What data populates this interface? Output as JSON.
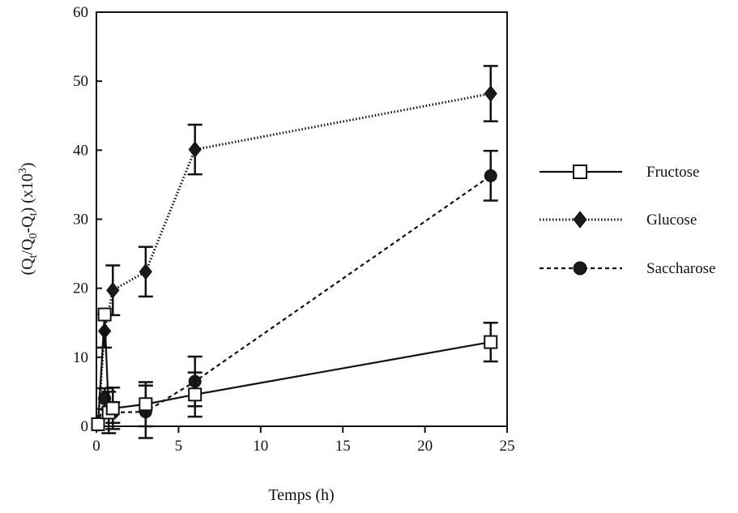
{
  "chart_data": {
    "type": "line",
    "title": "",
    "xlabel": "Temps (h)",
    "ylabel": {
      "parts": [
        {
          "text": "(Q",
          "shift": "none"
        },
        {
          "text": "t",
          "shift": "sub"
        },
        {
          "text": "/Q",
          "shift": "none"
        },
        {
          "text": "0",
          "shift": "sub"
        },
        {
          "text": "-Q",
          "shift": "none"
        },
        {
          "text": "t",
          "shift": "sub"
        },
        {
          "text": ") (x10",
          "shift": "none"
        },
        {
          "text": "3",
          "shift": "super"
        },
        {
          "text": ")",
          "shift": "none"
        }
      ]
    },
    "xlim": [
      0,
      25
    ],
    "ylim": [
      0,
      60
    ],
    "xticks": [
      0,
      5,
      10,
      15,
      20,
      25
    ],
    "yticks": [
      0,
      10,
      20,
      30,
      40,
      50,
      60
    ],
    "grid": false,
    "legend_position": "right",
    "series": [
      {
        "name": "Fructose",
        "line": "solid",
        "marker": "open-square",
        "points": [
          {
            "x": 0.1,
            "y": 0.3,
            "err": 0
          },
          {
            "x": 0.5,
            "y": 16.2,
            "err": 0
          },
          {
            "x": 0.75,
            "y": 2.0,
            "err": 3.0
          },
          {
            "x": 1,
            "y": 2.6,
            "err": 3.0
          },
          {
            "x": 3,
            "y": 3.2,
            "err": 3.2
          },
          {
            "x": 6,
            "y": 4.6,
            "err": 3.2
          },
          {
            "x": 24,
            "y": 12.2,
            "err": 2.8
          }
        ]
      },
      {
        "name": "Glucose",
        "line": "dotted",
        "marker": "filled-diamond",
        "points": [
          {
            "x": 0.1,
            "y": 0.5,
            "err": 0
          },
          {
            "x": 0.5,
            "y": 13.8,
            "err": 2.4
          },
          {
            "x": 1,
            "y": 19.7,
            "err": 3.6
          },
          {
            "x": 3,
            "y": 22.4,
            "err": 3.6
          },
          {
            "x": 6,
            "y": 40.1,
            "err": 3.6
          },
          {
            "x": 24,
            "y": 48.2,
            "err": 4.0
          }
        ]
      },
      {
        "name": "Saccharose",
        "line": "dashed",
        "marker": "filled-circle",
        "points": [
          {
            "x": 0.1,
            "y": 0.2,
            "err": 0
          },
          {
            "x": 0.5,
            "y": 4.0,
            "err": 1.5
          },
          {
            "x": 1,
            "y": 2.0,
            "err": 1.5
          },
          {
            "x": 3,
            "y": 2.1,
            "err": 3.8
          },
          {
            "x": 6,
            "y": 6.5,
            "err": 3.6
          },
          {
            "x": 24,
            "y": 36.3,
            "err": 3.6
          }
        ]
      }
    ]
  }
}
